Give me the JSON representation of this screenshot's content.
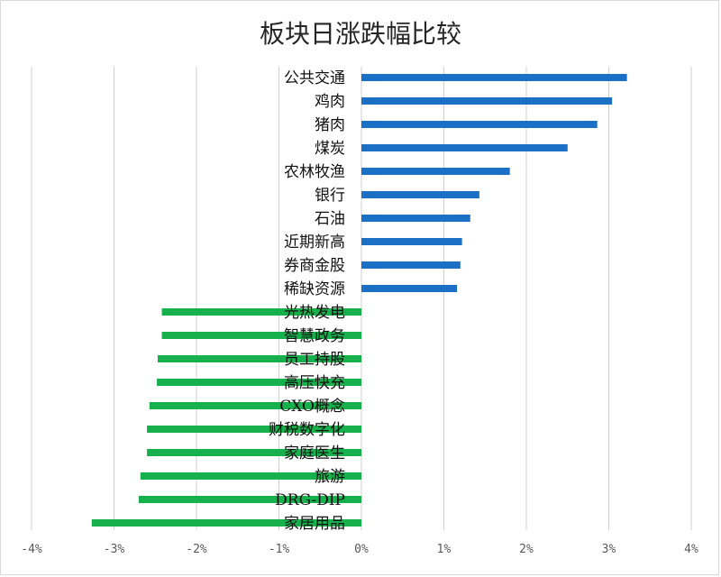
{
  "chart_data": {
    "type": "bar",
    "orientation": "horizontal",
    "title": "板块日涨跌幅比较",
    "xlabel": "",
    "ylabel": "",
    "xlim": [
      -4,
      4
    ],
    "x_tick_labels": [
      "-4%",
      "-3%",
      "-2%",
      "-1%",
      "0%",
      "1%",
      "2%",
      "3%",
      "4%"
    ],
    "grid": true,
    "legend": "none",
    "colors": {
      "positive": "#1b6fc4",
      "negative": "#16b04c",
      "grid": "#d0d0d0"
    },
    "categories": [
      "公共交通",
      "鸡肉",
      "猪肉",
      "煤炭",
      "农林牧渔",
      "银行",
      "石油",
      "近期新高",
      "券商金股",
      "稀缺资源",
      "光热发电",
      "智慧政务",
      "员工持股",
      "高压快充",
      "CXO概念",
      "财税数字化",
      "家庭医生",
      "旅游",
      "DRG-DIP",
      "家居用品"
    ],
    "values": [
      3.22,
      3.04,
      2.86,
      2.5,
      1.8,
      1.43,
      1.32,
      1.22,
      1.2,
      1.16,
      -2.42,
      -2.42,
      -2.47,
      -2.48,
      -2.57,
      -2.6,
      -2.6,
      -2.68,
      -2.7,
      -3.27
    ]
  }
}
